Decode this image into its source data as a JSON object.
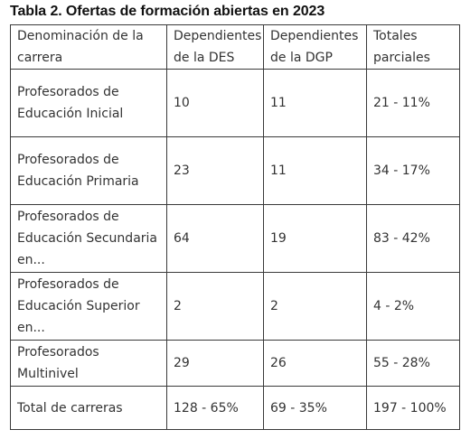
{
  "title": "Tabla 2. Ofertas de formación abiertas en 2023",
  "table": {
    "headers": [
      [
        "Denominación de la",
        "carrera"
      ],
      [
        "Dependientes",
        "de la DES"
      ],
      [
        "Dependientes",
        "de la DGP"
      ],
      [
        "Totales",
        "parciales"
      ]
    ],
    "rows": [
      {
        "name": [
          "Profesorados de",
          "Educación Inicial"
        ],
        "des": "10",
        "dgp": "11",
        "total": "21 - 11%"
      },
      {
        "name": [
          "Profesorados de",
          "Educación Primaria"
        ],
        "des": "23",
        "dgp": "11",
        "total": "34 - 17%"
      },
      {
        "name": [
          "Profesorados de",
          "Educación Secundaria",
          "en..."
        ],
        "des": "64",
        "dgp": "19",
        "total": "83 - 42%"
      },
      {
        "name": [
          "Profesorados de",
          "Educación Superior",
          "en..."
        ],
        "des": "2",
        "dgp": "2",
        "total": "4 - 2%"
      },
      {
        "name": [
          "Profesorados",
          "Multinivel"
        ],
        "des": "29",
        "dgp": "26",
        "total": "55 - 28%"
      }
    ],
    "footer": {
      "name": "Total de carreras",
      "des": "128 - 65%",
      "dgp": "69 - 35%",
      "total": "197 - 100%"
    }
  }
}
